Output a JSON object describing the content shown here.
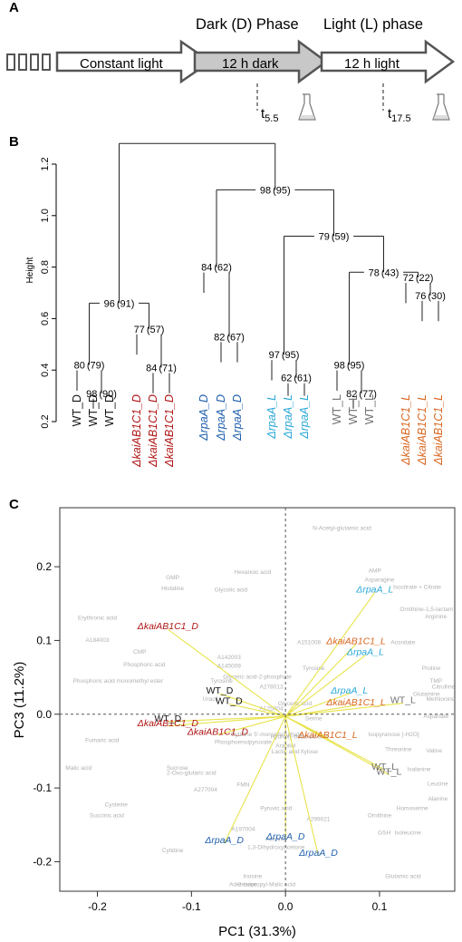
{
  "panels": {
    "a": "A",
    "b": "B",
    "c": "C"
  },
  "timeline": {
    "constant": "Constant light",
    "dark_phase": "Dark (D) Phase",
    "light_phase": "Light (L) phase",
    "dark_box": "12 h dark",
    "light_box": "12 h light",
    "t1_base": "t",
    "t1_sub": "5.5",
    "t2_base": "t",
    "t2_sub": "17.5"
  },
  "colors": {
    "wt": "#111111",
    "kaiD": "#b01515",
    "rpaD": "#1f5fae",
    "rpaL": "#2aa8d8",
    "wtL": "#707070",
    "kaiL": "#d9661f",
    "loading": "#e8e34a",
    "variable": "#b0b0b0"
  },
  "chart_data": [
    {
      "type": "dendrogram",
      "ylabel": "Height",
      "ylim": [
        0.2,
        1.3
      ],
      "yticks": [
        "0.2",
        "0.4",
        "0.6",
        "0.8",
        "1.0",
        "1.2"
      ],
      "leaves": [
        {
          "label": "WT_D",
          "group": "wt"
        },
        {
          "label": "WT_D",
          "group": "wt"
        },
        {
          "label": "WT_D",
          "group": "wt"
        },
        {
          "label": "ΔkaiAB1C1_D",
          "group": "kaiD"
        },
        {
          "label": "ΔkaiAB1C1_D",
          "group": "kaiD"
        },
        {
          "label": "ΔkaiAB1C1_D",
          "group": "kaiD"
        },
        {
          "label": "ΔrpaA_D",
          "group": "rpaD"
        },
        {
          "label": "ΔrpaA_D",
          "group": "rpaD"
        },
        {
          "label": "ΔrpaA_D",
          "group": "rpaD"
        },
        {
          "label": "ΔrpaA_L",
          "group": "rpaL"
        },
        {
          "label": "ΔrpaA_L",
          "group": "rpaL"
        },
        {
          "label": "ΔrpaA_L",
          "group": "rpaL"
        },
        {
          "label": "WT_L",
          "group": "wtL"
        },
        {
          "label": "WT_L",
          "group": "wtL"
        },
        {
          "label": "WT_L",
          "group": "wtL"
        },
        {
          "label": "ΔkaiAB1C1_L",
          "group": "kaiL"
        },
        {
          "label": "ΔkaiAB1C1_L",
          "group": "kaiL"
        },
        {
          "label": "ΔkaiAB1C1_L",
          "group": "kaiL"
        }
      ],
      "merges": [
        {
          "id": "n1",
          "a": "L1",
          "b": "L2",
          "h": 0.31,
          "label": "98",
          "paren": "(90)"
        },
        {
          "id": "n2",
          "a": "L0",
          "b": "n1",
          "h": 0.42,
          "label": "80",
          "paren": "(79)"
        },
        {
          "id": "n3",
          "a": "L4",
          "b": "L5",
          "h": 0.41,
          "label": "84",
          "paren": "(71)"
        },
        {
          "id": "n4",
          "a": "L3",
          "b": "n3",
          "h": 0.56,
          "label": "77",
          "paren": "(57)"
        },
        {
          "id": "n5",
          "a": "n2",
          "b": "n4",
          "h": 0.66,
          "label": "96",
          "paren": "(91)"
        },
        {
          "id": "n6",
          "a": "L7",
          "b": "L8",
          "h": 0.53,
          "label": "82",
          "paren": "(67)"
        },
        {
          "id": "n7",
          "a": "L6",
          "b": "n6",
          "h": 0.8,
          "label": "84",
          "paren": "(62)"
        },
        {
          "id": "n8",
          "a": "L10",
          "b": "L11",
          "h": 0.37,
          "label": "62",
          "paren": "(61)"
        },
        {
          "id": "n9",
          "a": "L9",
          "b": "n8",
          "h": 0.46,
          "label": "97",
          "paren": "(95)"
        },
        {
          "id": "n10",
          "a": "L13",
          "b": "L14",
          "h": 0.31,
          "label": "82",
          "paren": "(77)"
        },
        {
          "id": "n11",
          "a": "L12",
          "b": "n10",
          "h": 0.42,
          "label": "98",
          "paren": "(95)"
        },
        {
          "id": "n12",
          "a": "L16",
          "b": "L17",
          "h": 0.69,
          "label": "76",
          "paren": "(30)"
        },
        {
          "id": "n13",
          "a": "L15",
          "b": "n12",
          "h": 0.76,
          "label": "72",
          "paren": "(22)"
        },
        {
          "id": "n14",
          "a": "n11",
          "b": "n13",
          "h": 0.78,
          "label": "78",
          "paren": "(43)"
        },
        {
          "id": "n15",
          "a": "n9",
          "b": "n14",
          "h": 0.92,
          "label": "79",
          "paren": "(59)"
        },
        {
          "id": "n16",
          "a": "n7",
          "b": "n15",
          "h": 1.1,
          "label": "98",
          "paren": "(95)"
        },
        {
          "id": "n17",
          "a": "n5",
          "b": "n16",
          "h": 1.28,
          "label": "",
          "paren": ""
        }
      ]
    },
    {
      "type": "scatter",
      "xlabel": "PC1 (31.3%)",
      "ylabel": "PC3 (11.2%)",
      "xlim": [
        -0.24,
        0.18
      ],
      "ylim": [
        -0.24,
        0.28
      ],
      "xticks": [
        -0.2,
        -0.1,
        0.0,
        0.1
      ],
      "xtick_labels": [
        "-0.2",
        "-0.1",
        "0.0",
        "0.1"
      ],
      "yticks": [
        -0.2,
        -0.1,
        0.0,
        0.1,
        0.2
      ],
      "ytick_labels": [
        "-0.2",
        "-0.1",
        "0.0",
        "0.1",
        "0.2"
      ],
      "origin": [
        0.0,
        -0.003
      ],
      "samples": [
        {
          "label": "ΔrpaA_L",
          "group": "rpaL",
          "x": 0.095,
          "y": 0.165
        },
        {
          "label": "ΔkaiAB1C1_L",
          "group": "kaiL",
          "x": 0.075,
          "y": 0.095
        },
        {
          "label": "ΔrpaA_L",
          "group": "rpaL",
          "x": 0.085,
          "y": 0.08
        },
        {
          "label": "ΔrpaA_L",
          "group": "rpaL",
          "x": 0.068,
          "y": 0.028
        },
        {
          "label": "ΔkaiAB1C1_L",
          "group": "kaiL",
          "x": 0.075,
          "y": 0.012
        },
        {
          "label": "WT_L",
          "group": "wtL",
          "x": 0.125,
          "y": 0.015
        },
        {
          "label": "ΔkaiAB1C1_L",
          "group": "kaiL",
          "x": 0.045,
          "y": -0.032
        },
        {
          "label": "WT_L",
          "group": "wtL",
          "x": 0.105,
          "y": -0.075
        },
        {
          "label": "WT_L",
          "group": "wtL",
          "x": 0.11,
          "y": -0.082
        },
        {
          "label": "ΔkaiAB1C1_D",
          "group": "kaiD",
          "x": -0.125,
          "y": 0.115
        },
        {
          "label": "WT_D",
          "group": "wt",
          "x": -0.07,
          "y": 0.028
        },
        {
          "label": "WT_D",
          "group": "wt",
          "x": -0.06,
          "y": 0.014
        },
        {
          "label": "WT_D",
          "group": "wt",
          "x": -0.125,
          "y": -0.01
        },
        {
          "label": "ΔkaiAB1C1_D",
          "group": "kaiD",
          "x": -0.125,
          "y": -0.016
        },
        {
          "label": "ΔkaiAB1C1_D",
          "group": "kaiD",
          "x": -0.072,
          "y": -0.028
        },
        {
          "label": "ΔrpaA_D",
          "group": "rpaD",
          "x": -0.065,
          "y": -0.175
        },
        {
          "label": "ΔrpaA_D",
          "group": "rpaD",
          "x": 0.0,
          "y": -0.17
        },
        {
          "label": "ΔrpaA_D",
          "group": "rpaD",
          "x": 0.035,
          "y": -0.192
        }
      ],
      "variables": [
        {
          "label": "N-Acetyl-glutamic acid",
          "x": 0.06,
          "y": 0.25
        },
        {
          "label": "AMP",
          "x": 0.095,
          "y": 0.192
        },
        {
          "label": "Asparagine",
          "x": 0.1,
          "y": 0.18
        },
        {
          "label": "Isocitrate + Citrate",
          "x": 0.14,
          "y": 0.17
        },
        {
          "label": "Ornithine-1,5-lactam",
          "x": 0.15,
          "y": 0.14
        },
        {
          "label": "Arginine",
          "x": 0.16,
          "y": 0.13
        },
        {
          "label": "Aconitate",
          "x": 0.125,
          "y": 0.095
        },
        {
          "label": "Proline",
          "x": 0.155,
          "y": 0.06
        },
        {
          "label": "TMP",
          "x": 0.16,
          "y": 0.043
        },
        {
          "label": "Citrulline",
          "x": 0.168,
          "y": 0.035
        },
        {
          "label": "Glutamine",
          "x": 0.15,
          "y": 0.025
        },
        {
          "label": "Methionine",
          "x": 0.165,
          "y": 0.018
        },
        {
          "label": "Aspartate",
          "x": 0.16,
          "y": -0.005
        },
        {
          "label": "Isopyranose [-H2O]",
          "x": 0.115,
          "y": -0.03
        },
        {
          "label": "Threonine",
          "x": 0.12,
          "y": -0.05
        },
        {
          "label": "Valine",
          "x": 0.158,
          "y": -0.052
        },
        {
          "label": "Isalanine",
          "x": 0.142,
          "y": -0.077
        },
        {
          "label": "Leucine",
          "x": 0.162,
          "y": -0.097
        },
        {
          "label": "Alanine",
          "x": 0.162,
          "y": -0.117
        },
        {
          "label": "Homoserine",
          "x": 0.135,
          "y": -0.13
        },
        {
          "label": "Ornithine",
          "x": 0.1,
          "y": -0.14
        },
        {
          "label": "GSH",
          "x": 0.105,
          "y": -0.163
        },
        {
          "label": "Isoleucine",
          "x": 0.13,
          "y": -0.163
        },
        {
          "label": "Glutamic acid",
          "x": 0.125,
          "y": -0.222
        },
        {
          "label": "Hexanoic acid",
          "x": -0.035,
          "y": 0.19
        },
        {
          "label": "GMP",
          "x": -0.12,
          "y": 0.183
        },
        {
          "label": "Histidine",
          "x": -0.12,
          "y": 0.168
        },
        {
          "label": "Glycolic acid",
          "x": -0.058,
          "y": 0.166
        },
        {
          "label": "Erythronic acid",
          "x": -0.2,
          "y": 0.128
        },
        {
          "label": "A184003",
          "x": -0.2,
          "y": 0.098
        },
        {
          "label": "CMP",
          "x": -0.155,
          "y": 0.082
        },
        {
          "label": "Phosphoric acid",
          "x": -0.15,
          "y": 0.065
        },
        {
          "label": "Phosphoric acid monomethyl ester",
          "x": -0.178,
          "y": 0.043
        },
        {
          "label": "Tyrosine",
          "x": -0.068,
          "y": 0.043
        },
        {
          "label": "A142003",
          "x": -0.06,
          "y": 0.075
        },
        {
          "label": "A145009",
          "x": -0.06,
          "y": 0.063
        },
        {
          "label": "A151008",
          "x": 0.025,
          "y": 0.095
        },
        {
          "label": "Tyrosine",
          "x": 0.03,
          "y": 0.06
        },
        {
          "label": "Glyceric acid-2-phosphate",
          "x": -0.03,
          "y": 0.048
        },
        {
          "label": "A278013",
          "x": -0.015,
          "y": 0.035
        },
        {
          "label": "Uracil",
          "x": -0.08,
          "y": 0.018
        },
        {
          "label": "A125004",
          "x": -0.015,
          "y": 0.005
        },
        {
          "label": "Glyceric acid",
          "x": 0.01,
          "y": 0.012
        },
        {
          "label": "Serine",
          "x": 0.03,
          "y": -0.008
        },
        {
          "label": "Fumaric acid",
          "x": -0.195,
          "y": -0.038
        },
        {
          "label": "Malic acid",
          "x": -0.22,
          "y": -0.075
        },
        {
          "label": "Phosphoenolpyruvate",
          "x": -0.045,
          "y": -0.04
        },
        {
          "label": "Cytidine 5'-monophosphate",
          "x": -0.02,
          "y": -0.03
        },
        {
          "label": "Hydroxy-butanoic acid",
          "x": 0.015,
          "y": -0.033
        },
        {
          "label": "Lactic acid",
          "x": 0.0,
          "y": -0.053
        },
        {
          "label": "Arabitol",
          "x": 0.0,
          "y": -0.045
        },
        {
          "label": "Xylose",
          "x": 0.025,
          "y": -0.053
        },
        {
          "label": "Sucrose",
          "x": -0.115,
          "y": -0.075
        },
        {
          "label": "2-Oxo-glutaric acid",
          "x": -0.1,
          "y": -0.082
        },
        {
          "label": "A277004",
          "x": -0.085,
          "y": -0.105
        },
        {
          "label": "FMN",
          "x": -0.045,
          "y": -0.098
        },
        {
          "label": "Cysteine",
          "x": -0.18,
          "y": -0.125
        },
        {
          "label": "Succinic acid",
          "x": -0.19,
          "y": -0.14
        },
        {
          "label": "Pyruvic acid",
          "x": -0.01,
          "y": -0.13
        },
        {
          "label": "A197004",
          "x": -0.045,
          "y": -0.158
        },
        {
          "label": "Adenine",
          "x": -0.01,
          "y": -0.172
        },
        {
          "label": "1,3-Dihydroxyacetone",
          "x": -0.01,
          "y": -0.183
        },
        {
          "label": "A299021",
          "x": 0.035,
          "y": -0.145
        },
        {
          "label": "Cytidine",
          "x": -0.12,
          "y": -0.187
        },
        {
          "label": "Inosine",
          "x": -0.035,
          "y": -0.222
        },
        {
          "label": "Adenosine",
          "x": -0.045,
          "y": -0.233
        },
        {
          "label": "2-Isopropyl-Malic acid",
          "x": -0.02,
          "y": -0.233
        }
      ]
    }
  ]
}
